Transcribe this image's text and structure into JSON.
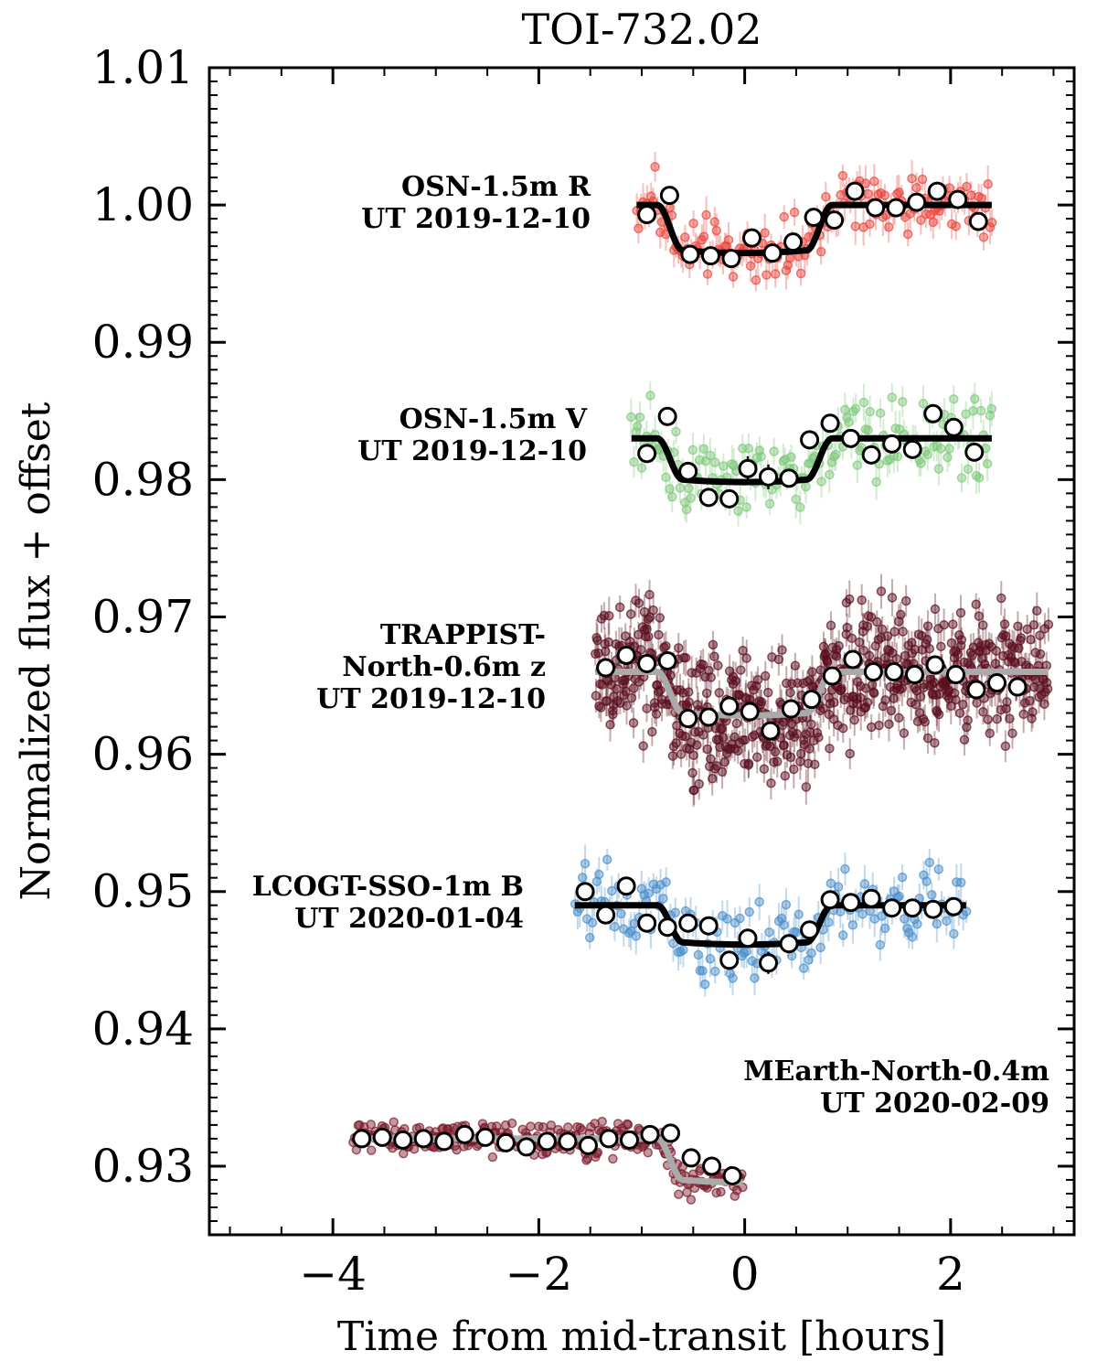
{
  "chart_data": {
    "type": "scatter",
    "title": "TOI-732.02",
    "xlabel": "Time from mid-transit [hours]",
    "ylabel": "Normalized flux + offset",
    "xlim": [
      -5.2,
      3.2
    ],
    "ylim": [
      0.925,
      1.01
    ],
    "xticks": [
      -4,
      -2,
      0,
      2
    ],
    "xtick_labels": [
      "−4",
      "−2",
      "0",
      "2"
    ],
    "yticks": [
      0.93,
      0.94,
      0.95,
      0.96,
      0.97,
      0.98,
      0.99,
      1.0,
      1.01
    ],
    "ytick_labels": [
      "0.93",
      "0.94",
      "0.95",
      "0.96",
      "0.97",
      "0.98",
      "0.99",
      "1.00",
      "1.01"
    ],
    "grid": false,
    "series": [
      {
        "name": "OSN-1.5m R",
        "date_label": "UT 2019-12-10",
        "label_lines": [
          "OSN-1.5m R",
          "UT 2019-12-10"
        ],
        "raw_color": "#e8453c",
        "model_color": "#000000",
        "baseline": 1.0,
        "depth": 0.0033,
        "x_range": [
          -1.05,
          2.4
        ],
        "raw_scatter": 0.0016,
        "raw_count": 170,
        "model": {
          "t1": -0.85,
          "t2": -0.6,
          "t3": 0.6,
          "t4": 0.85
        },
        "binned_x": [
          -0.95,
          -0.73,
          -0.53,
          -0.33,
          -0.13,
          0.07,
          0.27,
          0.47,
          0.67,
          0.87,
          1.07,
          1.27,
          1.47,
          1.67,
          1.87,
          2.07,
          2.27
        ],
        "binned_y": [
          0.9993,
          1.0007,
          0.9964,
          0.9963,
          0.9961,
          0.9976,
          0.9965,
          0.9973,
          0.9991,
          0.9989,
          1.001,
          0.9998,
          0.9998,
          1.0002,
          1.001,
          1.0004,
          0.9988
        ],
        "binned_err": [
          0.0004,
          0.0004,
          0.0004,
          0.0004,
          0.0004,
          0.0004,
          0.0004,
          0.0004,
          0.0004,
          0.0004,
          0.0004,
          0.0004,
          0.0004,
          0.0004,
          0.0004,
          0.0004,
          0.0004
        ]
      },
      {
        "name": "OSN-1.5m V",
        "date_label": "UT 2019-12-10",
        "label_lines": [
          "OSN-1.5m V",
          "UT 2019-12-10"
        ],
        "raw_color": "#7fc87a",
        "model_color": "#000000",
        "baseline": 0.983,
        "depth": 0.003,
        "x_range": [
          -1.1,
          2.4
        ],
        "raw_scatter": 0.0022,
        "raw_count": 170,
        "model": {
          "t1": -0.85,
          "t2": -0.6,
          "t3": 0.6,
          "t4": 0.85
        },
        "binned_x": [
          -0.95,
          -0.75,
          -0.55,
          -0.35,
          -0.15,
          0.03,
          0.23,
          0.43,
          0.63,
          0.83,
          1.03,
          1.23,
          1.43,
          1.63,
          1.83,
          2.03,
          2.23
        ],
        "binned_y": [
          0.9819,
          0.9846,
          0.9806,
          0.9787,
          0.9786,
          0.9808,
          0.9802,
          0.9801,
          0.9829,
          0.9841,
          0.983,
          0.9818,
          0.9826,
          0.9822,
          0.9848,
          0.9838,
          0.982
        ],
        "binned_err": [
          0.0006,
          0.0006,
          0.0006,
          0.0006,
          0.0006,
          0.0009,
          0.0009,
          0.0006,
          0.0006,
          0.0006,
          0.0006,
          0.0006,
          0.0006,
          0.0006,
          0.0006,
          0.0006,
          0.0006
        ]
      },
      {
        "name": "TRAPPIST-North-0.6m z",
        "date_label": "UT 2019-12-10",
        "label_lines": [
          "TRAPPIST-",
          "North-0.6m z",
          "UT 2019-12-10"
        ],
        "raw_color": "#5a0e1e",
        "model_color": "#aaaaaa",
        "baseline": 0.966,
        "depth": 0.003,
        "x_range": [
          -1.45,
          2.95
        ],
        "raw_scatter": 0.0035,
        "raw_count": 650,
        "model": {
          "t1": -0.85,
          "t2": -0.6,
          "t3": 0.6,
          "t4": 0.85
        },
        "binned_x": [
          -1.35,
          -1.15,
          -0.95,
          -0.75,
          -0.55,
          -0.35,
          -0.15,
          0.05,
          0.25,
          0.45,
          0.65,
          0.85,
          1.05,
          1.25,
          1.45,
          1.65,
          1.85,
          2.05,
          2.25,
          2.45,
          2.65
        ],
        "binned_y": [
          0.9663,
          0.9672,
          0.9666,
          0.9668,
          0.9626,
          0.9627,
          0.9635,
          0.9631,
          0.9617,
          0.9633,
          0.964,
          0.9657,
          0.9669,
          0.966,
          0.966,
          0.9658,
          0.9665,
          0.9658,
          0.9647,
          0.9652,
          0.9649
        ],
        "binned_err": [
          0.0007,
          0.0007,
          0.0007,
          0.0007,
          0.0005,
          0.0005,
          0.0005,
          0.0005,
          0.0005,
          0.0005,
          0.0005,
          0.0005,
          0.0005,
          0.0005,
          0.0005,
          0.0005,
          0.0005,
          0.0005,
          0.0005,
          0.0005,
          0.0005
        ]
      },
      {
        "name": "LCOGT-SSO-1m B",
        "date_label": "UT 2020-01-04",
        "label_lines": [
          "LCOGT-SSO-1m B",
          "UT 2020-01-04"
        ],
        "raw_color": "#4a8fcb",
        "model_color": "#000000",
        "baseline": 0.949,
        "depth": 0.0027,
        "x_range": [
          -1.65,
          2.15
        ],
        "raw_scatter": 0.0022,
        "raw_count": 160,
        "model": {
          "t1": -0.85,
          "t2": -0.6,
          "t3": 0.6,
          "t4": 0.85
        },
        "binned_x": [
          -1.55,
          -1.35,
          -1.15,
          -0.95,
          -0.75,
          -0.55,
          -0.35,
          -0.15,
          0.03,
          0.23,
          0.43,
          0.63,
          0.83,
          1.03,
          1.23,
          1.43,
          1.63,
          1.83,
          2.03
        ],
        "binned_y": [
          0.95,
          0.9483,
          0.9504,
          0.9477,
          0.9474,
          0.9477,
          0.9475,
          0.945,
          0.9466,
          0.9448,
          0.9462,
          0.9472,
          0.9494,
          0.9492,
          0.9495,
          0.9488,
          0.9488,
          0.9487,
          0.9489
        ],
        "binned_err": [
          0.0006,
          0.0006,
          0.0006,
          0.0006,
          0.0006,
          0.0006,
          0.0006,
          0.0006,
          0.0006,
          0.0008,
          0.0006,
          0.0006,
          0.0006,
          0.0006,
          0.0006,
          0.0006,
          0.0006,
          0.0006,
          0.0006
        ]
      },
      {
        "name": "MEarth-North-0.4m",
        "date_label": "UT 2020-02-09",
        "label_lines": [
          "MEarth-North-0.4m",
          "UT 2020-02-09"
        ],
        "raw_color": "#7a1a2a",
        "model_color": "#aaaaaa",
        "baseline": 0.932,
        "depth": 0.003,
        "x_range": [
          -3.8,
          -0.02
        ],
        "raw_scatter": 0.0009,
        "raw_count": 300,
        "model": {
          "t1": -0.85,
          "t2": -0.6,
          "t3": 0.6,
          "t4": 0.85
        },
        "binned_x": [
          -3.72,
          -3.52,
          -3.32,
          -3.12,
          -2.92,
          -2.72,
          -2.52,
          -2.32,
          -2.12,
          -1.92,
          -1.72,
          -1.52,
          -1.32,
          -1.12,
          -0.92,
          -0.72,
          -0.52,
          -0.32,
          -0.12
        ],
        "binned_y": [
          0.932,
          0.9321,
          0.9319,
          0.932,
          0.9318,
          0.9323,
          0.9321,
          0.9317,
          0.9314,
          0.9318,
          0.9318,
          0.9315,
          0.932,
          0.9319,
          0.9323,
          0.9324,
          0.9306,
          0.93,
          0.9293
        ],
        "binned_err": [
          0.0003,
          0.0003,
          0.0003,
          0.0003,
          0.0003,
          0.0003,
          0.0003,
          0.0003,
          0.0003,
          0.0003,
          0.0003,
          0.0003,
          0.0003,
          0.0003,
          0.0003,
          0.0003,
          0.0003,
          0.0003,
          0.0003
        ]
      }
    ]
  }
}
